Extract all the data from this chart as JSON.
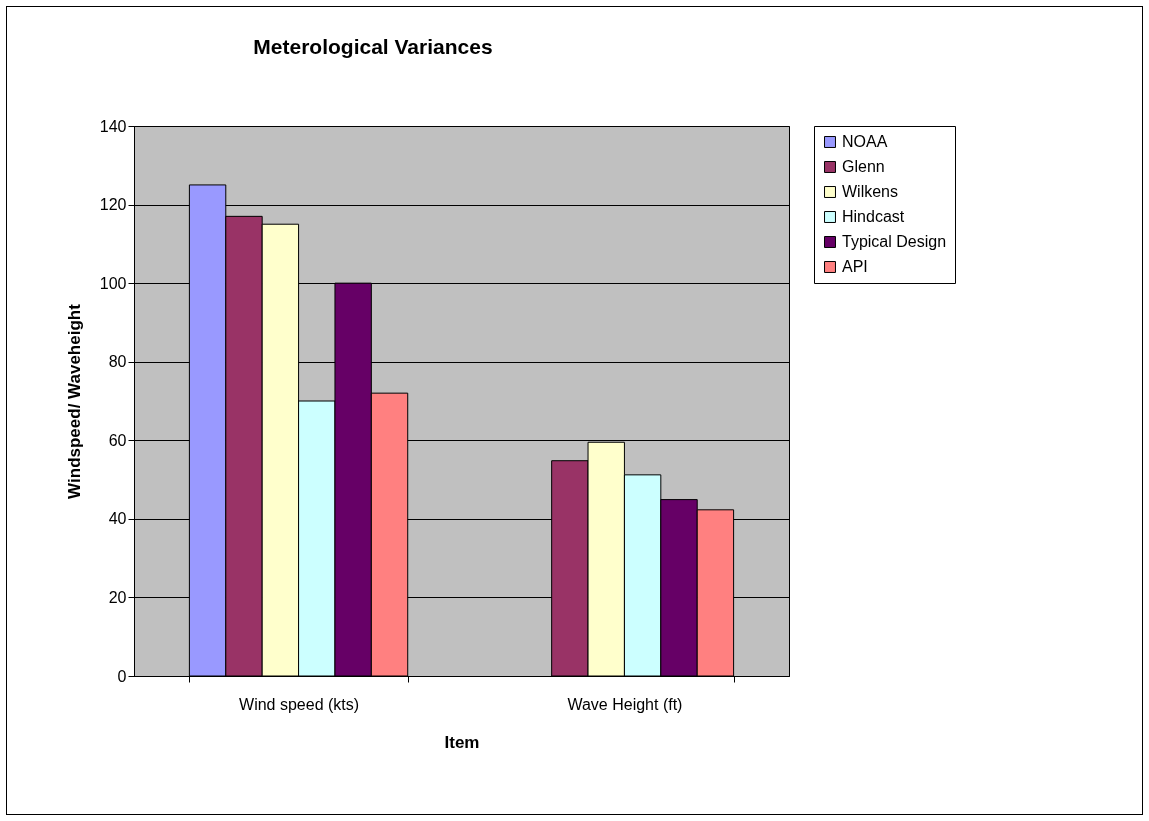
{
  "chart_data": {
    "type": "bar",
    "title": "Meterological Variances",
    "xlabel": "Item",
    "ylabel": "Windspeed/ Waveheight",
    "categories": [
      "Wind speed  (kts)",
      "Wave Height  (ft)"
    ],
    "series": [
      {
        "name": "NOAA",
        "color": "#9999ff",
        "values": [
          125,
          null
        ]
      },
      {
        "name": "Glenn",
        "color": "#993366",
        "values": [
          117,
          54.8
        ]
      },
      {
        "name": "Wilkens",
        "color": "#ffffcc",
        "values": [
          115,
          59.5
        ]
      },
      {
        "name": "Hindcast",
        "color": "#ccffff",
        "values": [
          70,
          51.2
        ]
      },
      {
        "name": "Typical Design",
        "color": "#660066",
        "values": [
          100,
          44.9
        ]
      },
      {
        "name": "API",
        "color": "#ff8080",
        "values": [
          72,
          42.3
        ]
      }
    ],
    "ylim": [
      0,
      140
    ],
    "yticks": [
      0,
      20,
      40,
      60,
      80,
      100,
      120,
      140
    ],
    "grid": "y",
    "legend": "right"
  }
}
